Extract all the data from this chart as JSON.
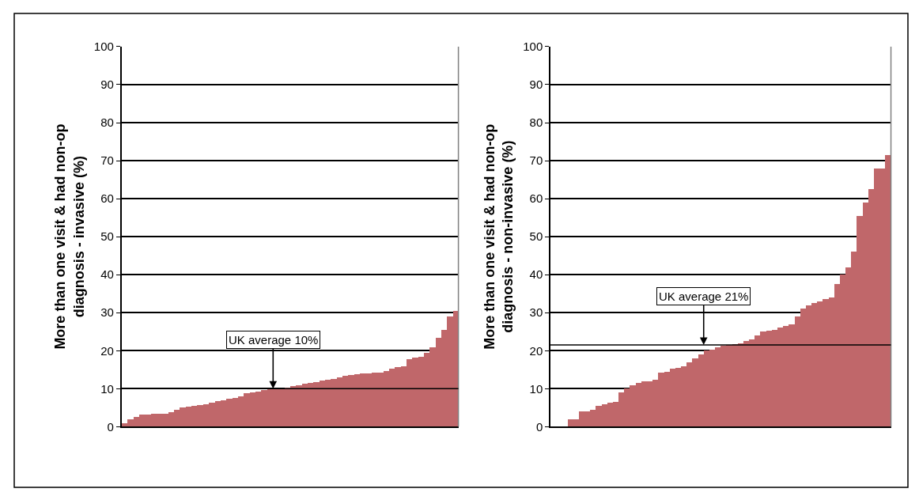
{
  "chart_data": [
    {
      "type": "bar",
      "ylabel": "More than one visit & had non-op\ndiagnosis - invasive (%)",
      "categories": [
        null,
        null,
        null,
        null,
        null,
        null,
        null,
        null,
        null,
        null,
        null,
        null,
        null,
        null,
        null,
        null,
        null,
        null,
        null,
        null,
        null,
        null,
        null,
        null,
        null,
        null,
        null,
        null,
        null,
        null,
        null,
        null,
        null,
        null,
        null,
        null,
        null,
        null,
        null,
        null,
        null,
        null,
        null,
        null,
        null,
        null,
        null,
        null,
        null,
        null,
        null,
        null,
        null,
        null,
        null,
        null,
        null,
        null
      ],
      "values": [
        1.0,
        2.0,
        2.6,
        3.2,
        3.3,
        3.4,
        3.4,
        3.5,
        3.8,
        4.4,
        5.0,
        5.3,
        5.5,
        5.7,
        5.9,
        6.3,
        6.7,
        7.0,
        7.3,
        7.6,
        8.0,
        8.8,
        9.1,
        9.3,
        9.6,
        9.8,
        10.0,
        10.1,
        10.3,
        10.6,
        11.0,
        11.3,
        11.5,
        11.8,
        12.1,
        12.3,
        12.5,
        13.0,
        13.5,
        13.7,
        13.9,
        14.0,
        14.1,
        14.2,
        14.3,
        14.7,
        15.3,
        15.8,
        16.0,
        17.8,
        18.2,
        18.5,
        19.5,
        21.0,
        23.5,
        25.5,
        29.0,
        30.5
      ],
      "color": "#c0676a",
      "ylim": [
        0,
        100
      ],
      "yticks": [
        0,
        10,
        20,
        30,
        40,
        50,
        60,
        70,
        80,
        90,
        100
      ],
      "grid": "y",
      "tick_labels": "y",
      "ref_lines": [
        {
          "axis": "y",
          "value": 10,
          "label": "UK average 10%",
          "color": "#000000"
        }
      ]
    },
    {
      "type": "bar",
      "ylabel": "More than one visit & had non-op\ndiagnosis - non-invasive (%)",
      "categories": [
        null,
        null,
        null,
        null,
        null,
        null,
        null,
        null,
        null,
        null,
        null,
        null,
        null,
        null,
        null,
        null,
        null,
        null,
        null,
        null,
        null,
        null,
        null,
        null,
        null,
        null,
        null,
        null,
        null,
        null,
        null,
        null,
        null,
        null,
        null,
        null,
        null,
        null,
        null,
        null,
        null,
        null,
        null,
        null,
        null,
        null,
        null,
        null,
        null,
        null,
        null,
        null,
        null,
        null,
        null,
        null,
        null,
        null,
        null,
        null
      ],
      "values": [
        null,
        null,
        null,
        2,
        2,
        4,
        4,
        4.5,
        5.5,
        6,
        6.3,
        6.5,
        9,
        10,
        11,
        11.5,
        12,
        12,
        12.3,
        14.3,
        14.5,
        15.3,
        15.5,
        16,
        17,
        18,
        19,
        20,
        20.3,
        21,
        21.3,
        21.5,
        21.8,
        22,
        22.5,
        23,
        24,
        25,
        25.2,
        25.5,
        26,
        26.5,
        27,
        29,
        31,
        32,
        32.5,
        33,
        33.5,
        34,
        37.5,
        40,
        42,
        46,
        55.5,
        59,
        62.5,
        68,
        68,
        71.5
      ],
      "color": "#c0676a",
      "ylim": [
        0,
        100
      ],
      "yticks": [
        0,
        10,
        20,
        30,
        40,
        50,
        60,
        70,
        80,
        90,
        100
      ],
      "grid": "y",
      "tick_labels": "y",
      "ref_lines": [
        {
          "axis": "y",
          "value": 21.5,
          "label": "UK average 21%",
          "color": "#000000"
        }
      ]
    }
  ]
}
